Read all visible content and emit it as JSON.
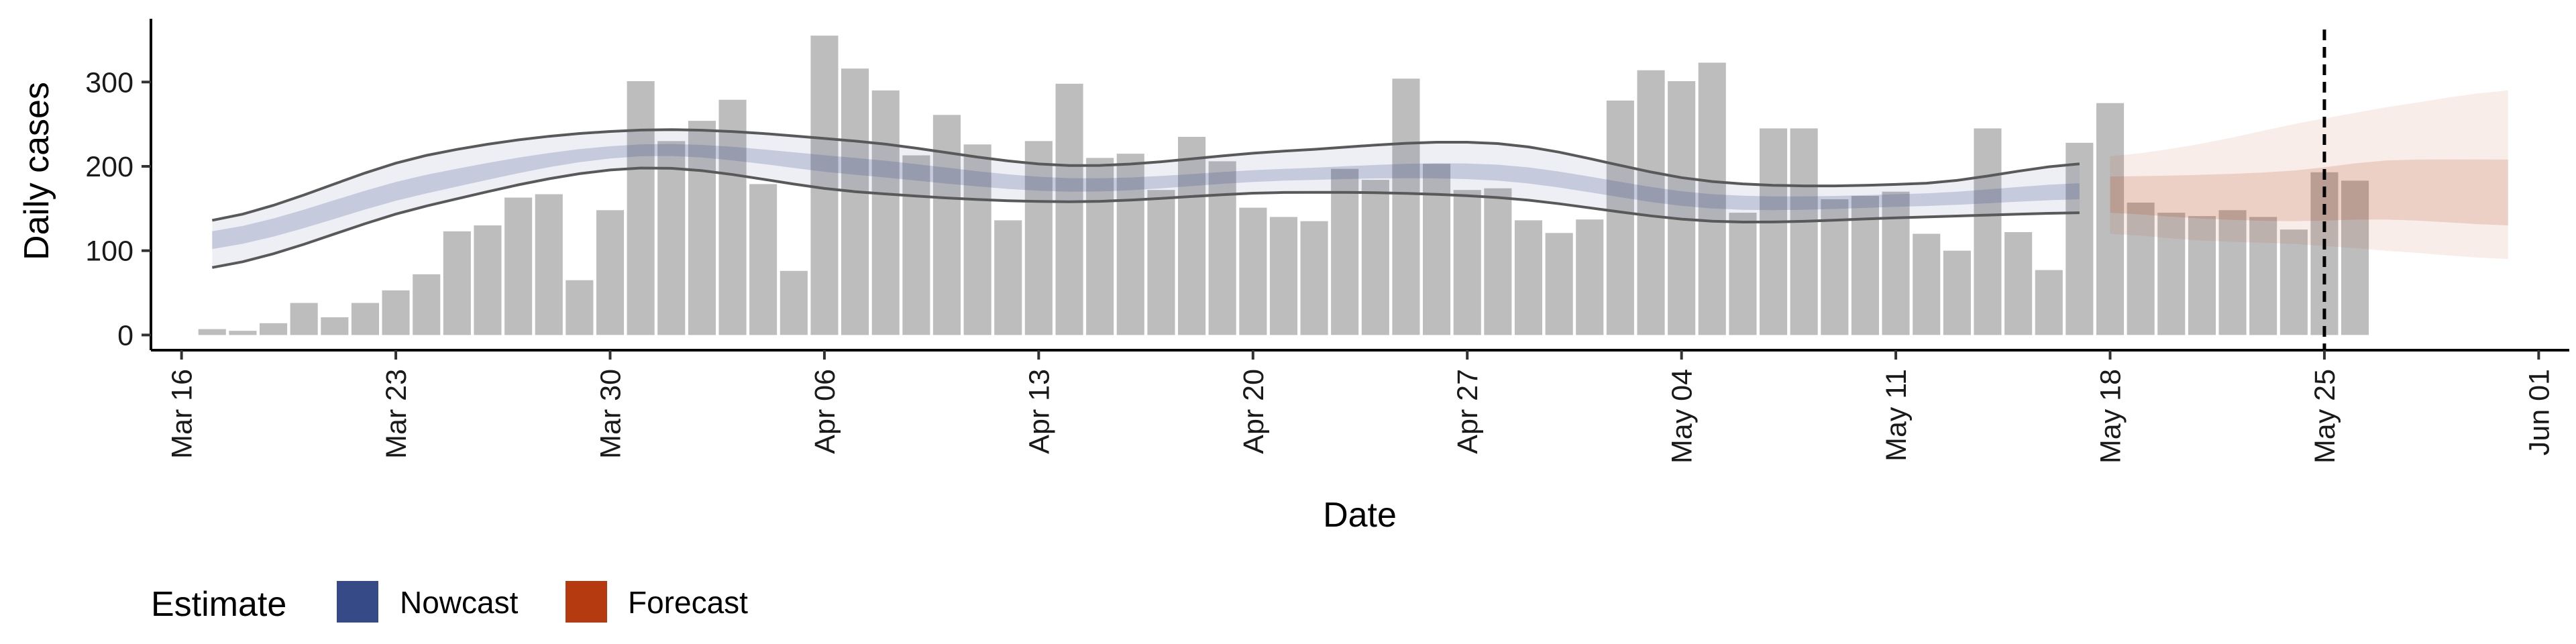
{
  "chart_data": {
    "type": "bar",
    "title": "",
    "xlabel": "Date",
    "ylabel": "Daily cases",
    "x_range": [
      "2020-03-15",
      "2020-06-02"
    ],
    "ylim": [
      -18,
      375
    ],
    "y_ticks": [
      0,
      100,
      200,
      300
    ],
    "x_ticks": [
      {
        "date": "2020-03-16",
        "label": "Mar 16"
      },
      {
        "date": "2020-03-23",
        "label": "Mar 23"
      },
      {
        "date": "2020-03-30",
        "label": "Mar 30"
      },
      {
        "date": "2020-04-06",
        "label": "Apr 06"
      },
      {
        "date": "2020-04-13",
        "label": "Apr 13"
      },
      {
        "date": "2020-04-20",
        "label": "Apr 20"
      },
      {
        "date": "2020-04-27",
        "label": "Apr 27"
      },
      {
        "date": "2020-05-04",
        "label": "May 04"
      },
      {
        "date": "2020-05-11",
        "label": "May 11"
      },
      {
        "date": "2020-05-18",
        "label": "May 18"
      },
      {
        "date": "2020-05-25",
        "label": "May 25"
      },
      {
        "date": "2020-06-01",
        "label": "Jun 01"
      }
    ],
    "grid": false,
    "legend": {
      "position": "bottom-left",
      "title": "Estimate",
      "entries": [
        {
          "label": "Nowcast",
          "color": "#354a87"
        },
        {
          "label": "Forecast",
          "color": "#b53a0f"
        }
      ]
    },
    "cases": {
      "start_date": "2020-03-17",
      "values": [
        7,
        5,
        14,
        38,
        21,
        38,
        53,
        72,
        123,
        130,
        163,
        167,
        65,
        148,
        301,
        230,
        254,
        279,
        179,
        76,
        355,
        316,
        290,
        213,
        261,
        226,
        136,
        230,
        298,
        210,
        215,
        172,
        235,
        206,
        151,
        140,
        135,
        197,
        184,
        304,
        203,
        172,
        174,
        136,
        121,
        137,
        278,
        314,
        301,
        323,
        145,
        245,
        245,
        161,
        165,
        170,
        120,
        100,
        245,
        122,
        77,
        228,
        275,
        157,
        145,
        141,
        148,
        140,
        125,
        193,
        183
      ]
    },
    "nowcast": {
      "start_date": "2020-03-17",
      "weekly_dates": [
        "2020-03-17",
        "2020-03-24",
        "2020-03-31",
        "2020-04-07",
        "2020-04-14",
        "2020-04-21",
        "2020-04-28",
        "2020-05-05",
        "2020-05-12",
        "2020-05-17"
      ],
      "weekly_median": [
        112,
        178,
        218,
        200,
        178,
        190,
        192,
        158,
        160,
        170
      ],
      "weekly_inner_low": [
        102,
        168,
        212,
        190,
        170,
        183,
        183,
        150,
        153,
        161
      ],
      "weekly_inner_high": [
        123,
        190,
        226,
        210,
        186,
        197,
        202,
        167,
        168,
        180
      ],
      "weekly_outer_low": [
        80,
        153,
        198,
        170,
        158,
        169,
        163,
        135,
        140,
        145
      ],
      "weekly_outer_high": [
        136,
        213,
        243,
        230,
        201,
        218,
        227,
        182,
        180,
        203
      ]
    },
    "forecast": {
      "dates": [
        "2020-05-18",
        "2020-05-21",
        "2020-05-24",
        "2020-05-27",
        "2020-05-31"
      ],
      "median": [
        168,
        163,
        165,
        170,
        170
      ],
      "inner_low": [
        145,
        138,
        135,
        137,
        130
      ],
      "inner_high": [
        188,
        190,
        195,
        207,
        208
      ],
      "outer_low": [
        120,
        112,
        108,
        100,
        90
      ],
      "outer_high": [
        212,
        227,
        250,
        270,
        290
      ]
    },
    "forecast_date": "2020-05-25",
    "colors": {
      "bars": "#bdbdbd",
      "nowcast": "#354a87",
      "forecast": "#b53a0f",
      "outline": "#595959",
      "vline": "#000000"
    }
  },
  "labels": {
    "xlabel": "Date",
    "ylabel": "Daily cases",
    "legend_title": "Estimate",
    "legend_nowcast": "Nowcast",
    "legend_forecast": "Forecast"
  }
}
